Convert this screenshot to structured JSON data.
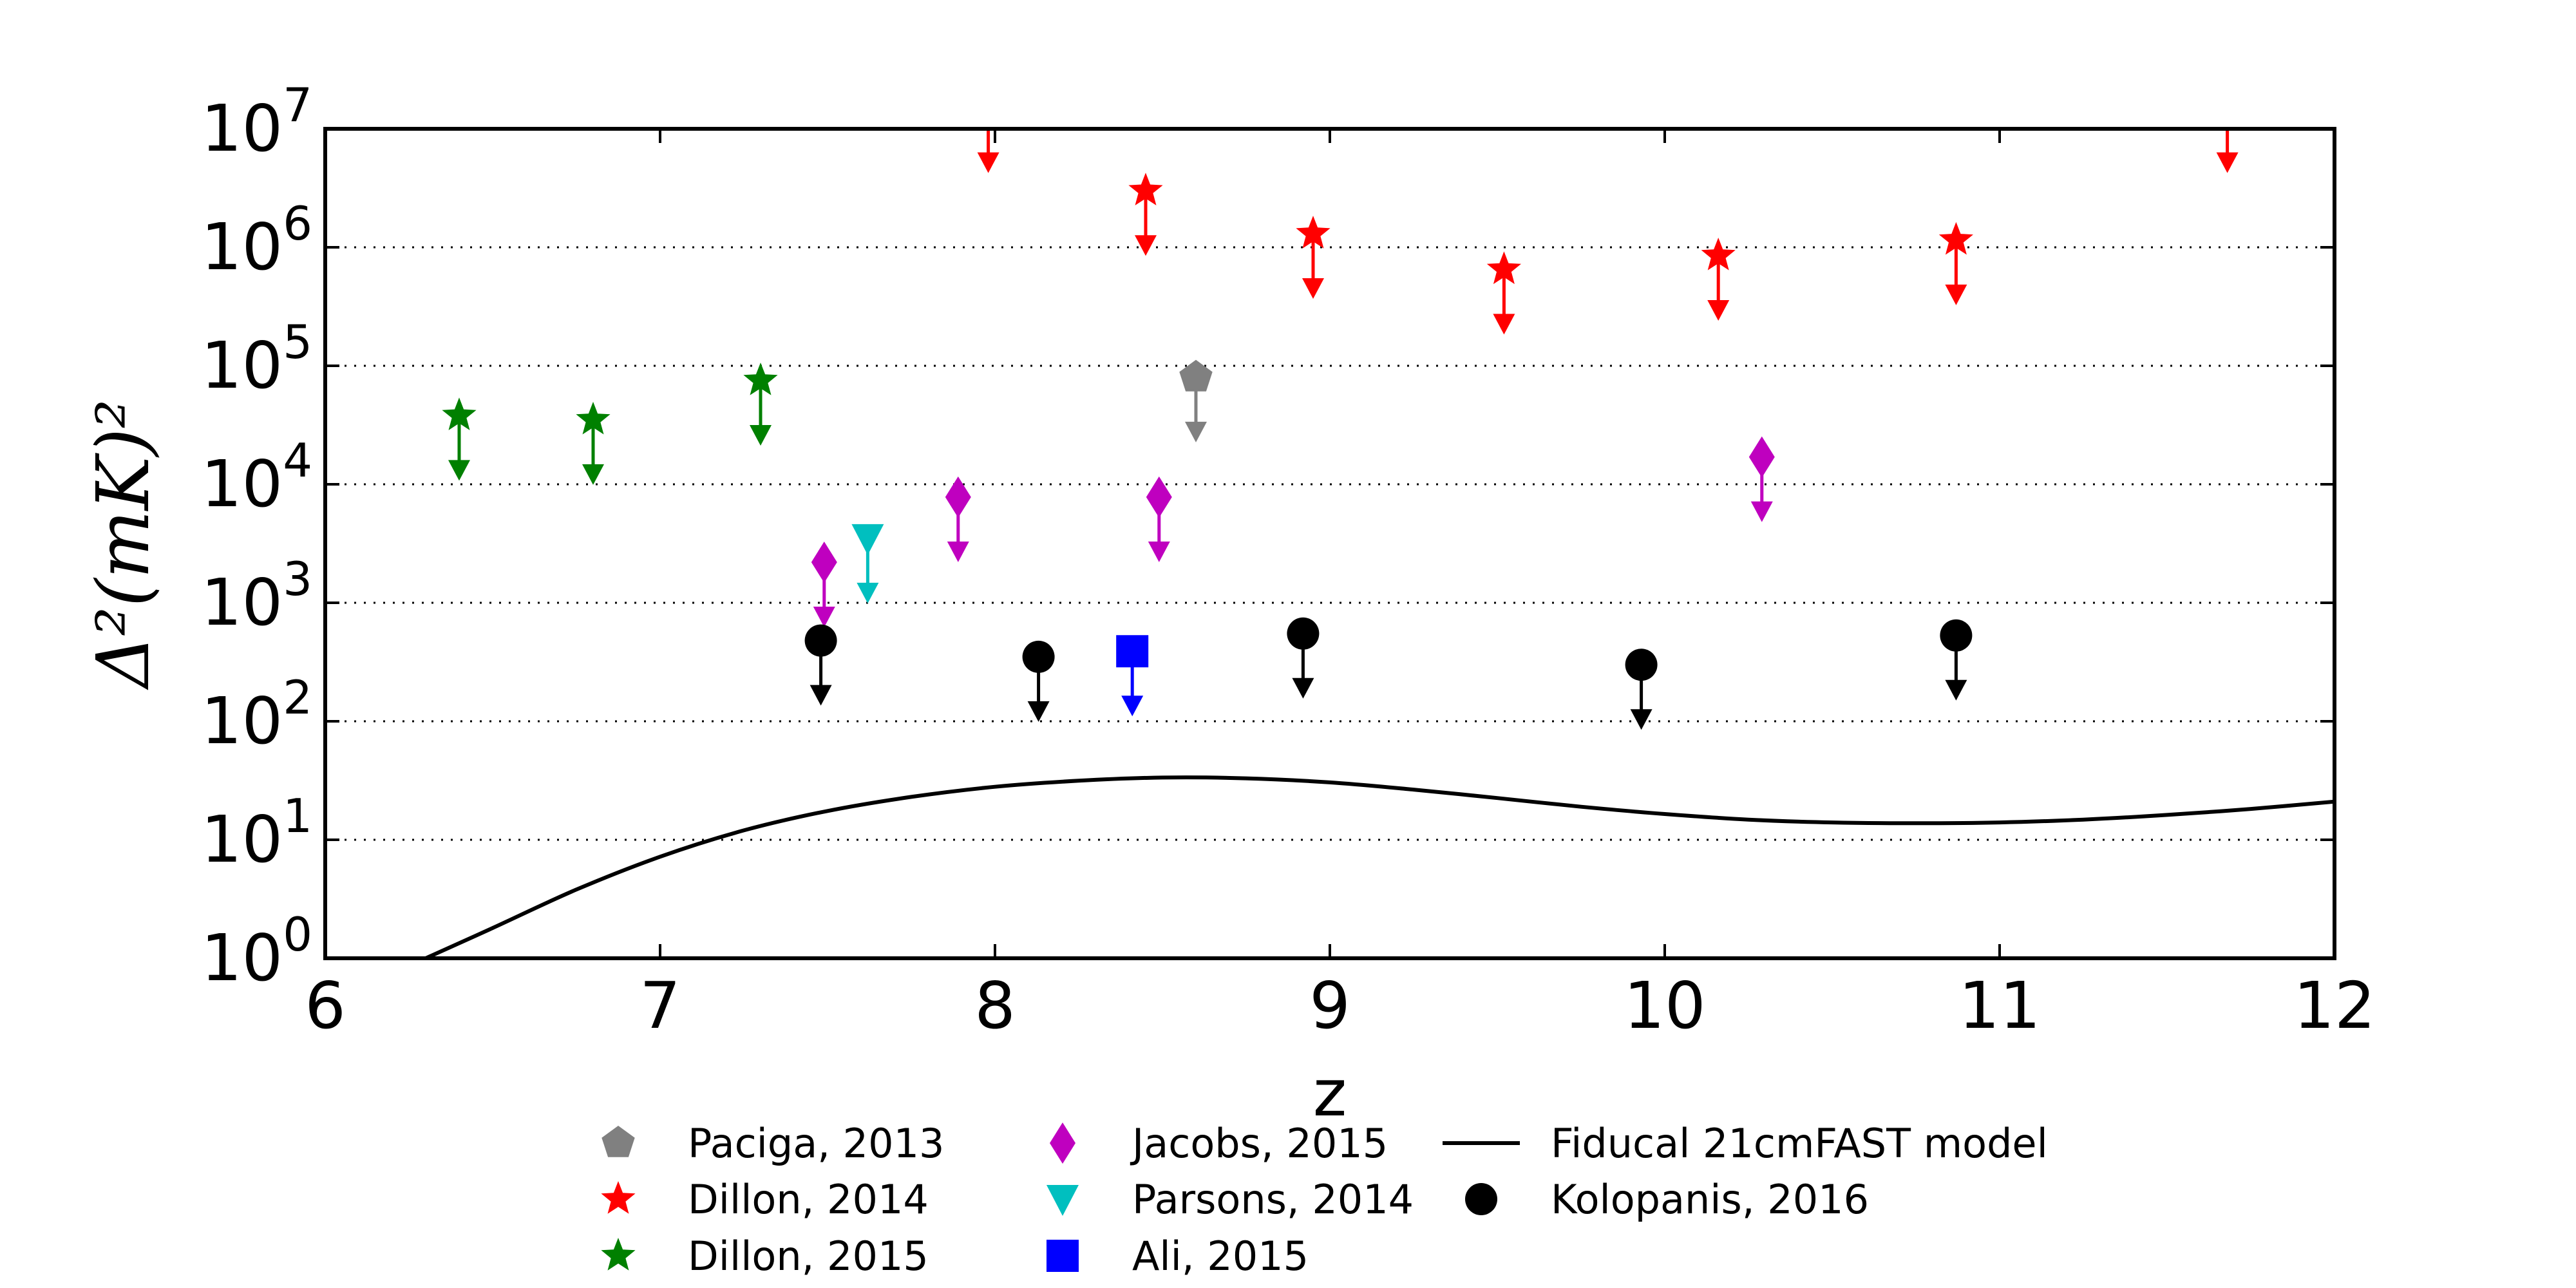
{
  "chart_data": {
    "type": "scatter",
    "xlabel": "z",
    "ylabel": "Δ²(mK)²",
    "xlim": [
      6,
      12
    ],
    "ylim": [
      1,
      10000000
    ],
    "yscale": "log",
    "x_ticks": [
      "6",
      "7",
      "8",
      "9",
      "10",
      "11",
      "12"
    ],
    "y_ticks": [
      {
        "base": "10",
        "exp": "0",
        "value": 1
      },
      {
        "base": "10",
        "exp": "1",
        "value": 10
      },
      {
        "base": "10",
        "exp": "2",
        "value": 100
      },
      {
        "base": "10",
        "exp": "3",
        "value": 1000
      },
      {
        "base": "10",
        "exp": "4",
        "value": 10000
      },
      {
        "base": "10",
        "exp": "5",
        "value": 100000
      },
      {
        "base": "10",
        "exp": "6",
        "value": 1000000
      },
      {
        "base": "10",
        "exp": "7",
        "value": 10000000
      }
    ],
    "grid": "horizontal dotted at each decade",
    "legend_placement": "below plot, three columns",
    "series": [
      {
        "name": "Paciga, 2013",
        "marker": "pentagon",
        "color": "#808080",
        "upper_limit": true,
        "points": [
          {
            "x": 8.6,
            "y": 80000
          }
        ]
      },
      {
        "name": "Dillon, 2014",
        "marker": "star",
        "color": "#ff0000",
        "upper_limit": true,
        "points": [
          {
            "x": 7.98,
            "y": 15000000
          },
          {
            "x": 8.45,
            "y": 3000000
          },
          {
            "x": 8.95,
            "y": 1300000
          },
          {
            "x": 9.52,
            "y": 650000
          },
          {
            "x": 10.16,
            "y": 850000
          },
          {
            "x": 10.87,
            "y": 1150000
          },
          {
            "x": 11.68,
            "y": 15000000
          }
        ]
      },
      {
        "name": "Dillon, 2015",
        "marker": "star",
        "color": "#008000",
        "upper_limit": true,
        "points": [
          {
            "x": 6.4,
            "y": 38000
          },
          {
            "x": 6.8,
            "y": 35000
          },
          {
            "x": 7.3,
            "y": 75000
          }
        ]
      },
      {
        "name": "Jacobs, 2015",
        "marker": "diamond",
        "color": "#bf00bf",
        "upper_limit": true,
        "points": [
          {
            "x": 7.49,
            "y": 2200
          },
          {
            "x": 7.89,
            "y": 7800
          },
          {
            "x": 8.49,
            "y": 7800
          },
          {
            "x": 10.29,
            "y": 17000
          }
        ]
      },
      {
        "name": "Parsons, 2014",
        "marker": "triangle-down",
        "color": "#00bfbf",
        "upper_limit": true,
        "points": [
          {
            "x": 7.62,
            "y": 3500
          }
        ]
      },
      {
        "name": "Ali, 2015",
        "marker": "square",
        "color": "#0000ff",
        "upper_limit": true,
        "points": [
          {
            "x": 8.41,
            "y": 390
          }
        ]
      },
      {
        "name": "Kolopanis, 2016",
        "marker": "circle",
        "color": "#000000",
        "upper_limit": true,
        "points": [
          {
            "x": 7.48,
            "y": 480
          },
          {
            "x": 8.13,
            "y": 350
          },
          {
            "x": 8.92,
            "y": 550
          },
          {
            "x": 9.93,
            "y": 300
          },
          {
            "x": 10.87,
            "y": 530
          }
        ]
      },
      {
        "name": "Fiducal 21cmFAST model",
        "type": "line",
        "color": "#000000",
        "x": [
          6.3,
          6.5,
          6.75,
          7.0,
          7.25,
          7.5,
          7.75,
          8.0,
          8.25,
          8.5,
          8.75,
          9.0,
          9.25,
          9.5,
          9.75,
          10.0,
          10.25,
          10.5,
          10.75,
          11.0,
          11.25,
          11.5,
          11.75,
          12.0
        ],
        "y": [
          1.0,
          1.8,
          3.8,
          7.2,
          12.0,
          17.5,
          23.0,
          28.0,
          31.5,
          33.5,
          33.0,
          30.5,
          26.5,
          22.5,
          19.0,
          16.5,
          14.8,
          14.0,
          13.8,
          14.0,
          14.8,
          16.2,
          18.2,
          21.0
        ]
      }
    ],
    "legend_order": [
      "Paciga, 2013",
      "Dillon, 2014",
      "Dillon, 2015",
      "Jacobs, 2015",
      "Parsons, 2014",
      "Ali, 2015",
      "Fiducal 21cmFAST model",
      "Kolopanis, 2016"
    ]
  }
}
